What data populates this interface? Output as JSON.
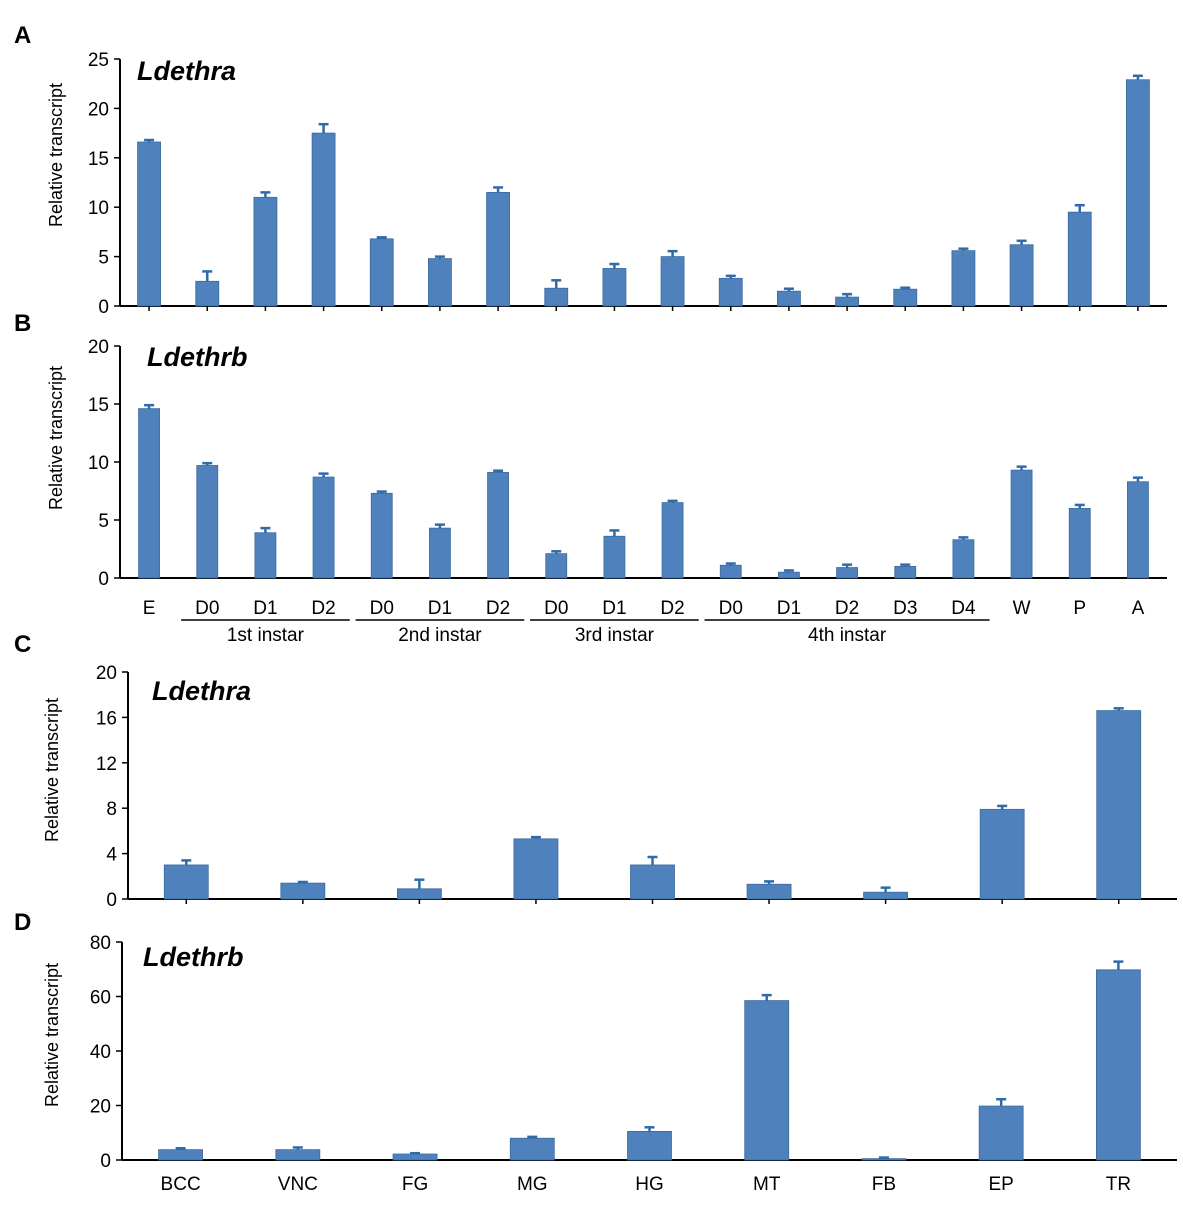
{
  "figure": {
    "series_color": "#4F81BD"
  },
  "chart_data": [
    {
      "panel": "A",
      "type": "bar",
      "title": "Ldethra",
      "ylabel": "Relative transcript",
      "xlabel": "",
      "ylim": [
        0,
        25
      ],
      "yticks": [
        0,
        5,
        10,
        15,
        20,
        25
      ],
      "categories": [
        "E",
        "D0",
        "D1",
        "D2",
        "D0",
        "D1",
        "D2",
        "D0",
        "D1",
        "D2",
        "D0",
        "D1",
        "D2",
        "D3",
        "D4",
        "W",
        "P",
        "A"
      ],
      "show_category_labels": false,
      "values": [
        16.6,
        2.5,
        11.0,
        17.5,
        6.8,
        4.8,
        11.5,
        1.8,
        3.8,
        5.0,
        2.8,
        1.5,
        0.9,
        1.7,
        5.6,
        6.2,
        9.5,
        22.9
      ],
      "errors": [
        0.2,
        1.0,
        0.5,
        0.9,
        0.15,
        0.2,
        0.5,
        0.8,
        0.45,
        0.55,
        0.25,
        0.25,
        0.3,
        0.15,
        0.2,
        0.4,
        0.7,
        0.4
      ]
    },
    {
      "panel": "B",
      "type": "bar",
      "title": "Ldethrb",
      "ylabel": "Relative transcript",
      "xlabel": "",
      "ylim": [
        0,
        20
      ],
      "yticks": [
        0,
        5,
        10,
        15,
        20
      ],
      "categories": [
        "E",
        "D0",
        "D1",
        "D2",
        "D0",
        "D1",
        "D2",
        "D0",
        "D1",
        "D2",
        "D0",
        "D1",
        "D2",
        "D3",
        "D4",
        "W",
        "P",
        "A"
      ],
      "show_category_labels": true,
      "values": [
        14.6,
        9.7,
        3.9,
        8.7,
        7.3,
        4.3,
        9.1,
        2.1,
        3.6,
        6.5,
        1.1,
        0.5,
        0.9,
        1.0,
        3.3,
        9.3,
        6.0,
        8.3
      ],
      "errors": [
        0.3,
        0.2,
        0.4,
        0.3,
        0.15,
        0.3,
        0.15,
        0.2,
        0.5,
        0.15,
        0.15,
        0.15,
        0.25,
        0.15,
        0.2,
        0.3,
        0.3,
        0.35
      ],
      "groups": [
        {
          "label": "1st instar",
          "from": 1,
          "to": 3
        },
        {
          "label": "2nd instar",
          "from": 4,
          "to": 6
        },
        {
          "label": "3rd instar",
          "from": 7,
          "to": 9
        },
        {
          "label": "4th instar",
          "from": 10,
          "to": 14
        }
      ]
    },
    {
      "panel": "C",
      "type": "bar",
      "title": "Ldethra",
      "ylabel": "Relative transcript",
      "xlabel": "",
      "ylim": [
        0,
        20
      ],
      "yticks": [
        0,
        4,
        8,
        12,
        16,
        20
      ],
      "categories": [
        "BCC",
        "VNC",
        "FG",
        "MG",
        "HG",
        "MT",
        "FB",
        "EP",
        "TR"
      ],
      "show_category_labels": false,
      "values": [
        3.0,
        1.4,
        0.9,
        5.3,
        3.0,
        1.3,
        0.6,
        7.9,
        16.6
      ],
      "errors": [
        0.4,
        0.1,
        0.8,
        0.15,
        0.7,
        0.25,
        0.4,
        0.3,
        0.2
      ]
    },
    {
      "panel": "D",
      "type": "bar",
      "title": "Ldethrb",
      "ylabel": "Relative transcript",
      "xlabel": "",
      "ylim": [
        0,
        80
      ],
      "yticks": [
        0,
        20,
        40,
        60,
        80
      ],
      "categories": [
        "BCC",
        "VNC",
        "FG",
        "MG",
        "HG",
        "MT",
        "FB",
        "EP",
        "TR"
      ],
      "show_category_labels": true,
      "values": [
        3.8,
        3.8,
        2.2,
        8.0,
        10.5,
        58.5,
        0.5,
        19.8,
        69.8
      ],
      "errors": [
        0.5,
        0.8,
        0.3,
        0.5,
        1.5,
        2.0,
        0.4,
        2.5,
        3.0
      ]
    }
  ]
}
